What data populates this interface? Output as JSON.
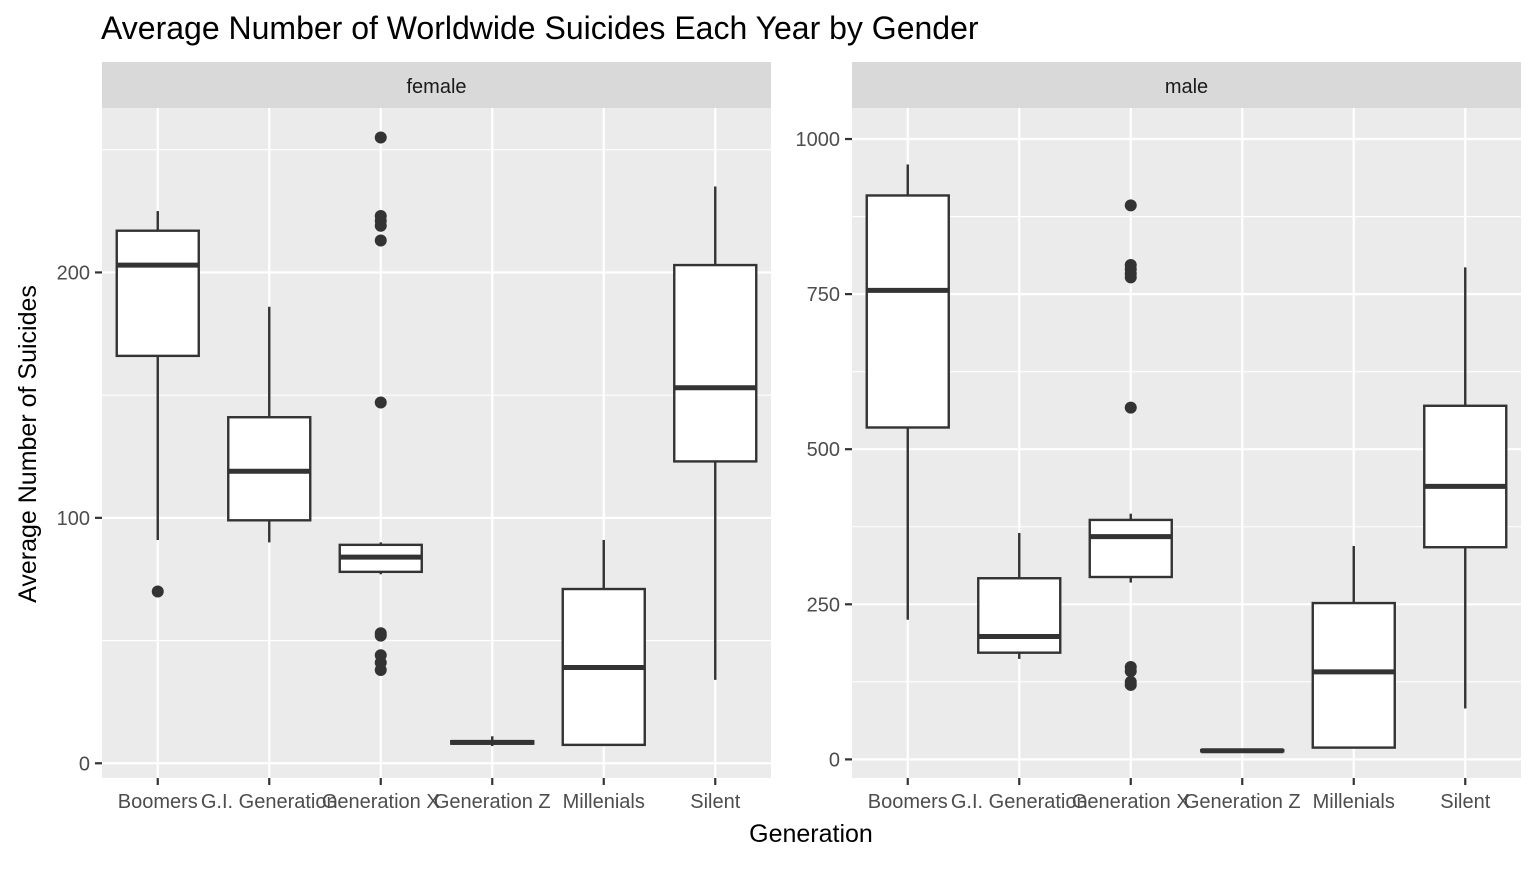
{
  "chart_data": {
    "type": "boxplot",
    "title": "Average Number of Worldwide Suicides Each Year by Gender",
    "xlabel": "Generation",
    "ylabel": "Average Number of Suicides",
    "categories": [
      "Boomers",
      "G.I. Generation",
      "Generation X",
      "Generation Z",
      "Millenials",
      "Silent"
    ],
    "colors": {
      "panel": "#ebebeb",
      "strip": "#d9d9d9",
      "ink": "#333333",
      "box_fill": "#ffffff"
    },
    "grid": true,
    "facets": [
      {
        "label": "female",
        "ylim": [
          -6,
          267
        ],
        "yticks": [
          0,
          100,
          200
        ],
        "boxes": [
          {
            "category": "Boomers",
            "min": 91,
            "q1": 166,
            "median": 203,
            "q3": 217,
            "max": 225,
            "outliers": [
              70
            ]
          },
          {
            "category": "G.I. Generation",
            "min": 90,
            "q1": 99,
            "median": 119,
            "q3": 141,
            "max": 186,
            "outliers": []
          },
          {
            "category": "Generation X",
            "min": 77,
            "q1": 78,
            "median": 84,
            "q3": 89,
            "max": 90,
            "outliers": [
              255,
              223,
              221,
              219,
              213,
              147,
              53,
              52,
              44,
              41,
              38
            ]
          },
          {
            "category": "Generation Z",
            "min": 7,
            "q1": 8,
            "median": 8.5,
            "q3": 9,
            "max": 11,
            "outliers": []
          },
          {
            "category": "Millenials",
            "min": 7,
            "q1": 7.5,
            "median": 39,
            "q3": 71,
            "max": 91,
            "outliers": []
          },
          {
            "category": "Silent",
            "min": 34,
            "q1": 123,
            "median": 153,
            "q3": 203,
            "max": 235,
            "outliers": []
          }
        ]
      },
      {
        "label": "male",
        "ylim": [
          -30,
          1050
        ],
        "yticks": [
          0,
          250,
          500,
          750,
          1000
        ],
        "boxes": [
          {
            "category": "Boomers",
            "min": 225,
            "q1": 535,
            "median": 756,
            "q3": 909,
            "max": 959,
            "outliers": []
          },
          {
            "category": "G.I. Generation",
            "min": 162,
            "q1": 172,
            "median": 198,
            "q3": 292,
            "max": 365,
            "outliers": []
          },
          {
            "category": "Generation X",
            "min": 285,
            "q1": 294,
            "median": 359,
            "q3": 386,
            "max": 396,
            "outliers": [
              893,
              797,
              790,
              783,
              777,
              567,
              149,
              142,
              125,
              120
            ]
          },
          {
            "category": "Generation Z",
            "min": 12,
            "q1": 13,
            "median": 14,
            "q3": 15,
            "max": 16,
            "outliers": []
          },
          {
            "category": "Millenials",
            "min": 18,
            "q1": 19,
            "median": 141,
            "q3": 252,
            "max": 344,
            "outliers": []
          },
          {
            "category": "Silent",
            "min": 82,
            "q1": 342,
            "median": 440,
            "q3": 570,
            "max": 793,
            "outliers": []
          }
        ]
      }
    ]
  }
}
